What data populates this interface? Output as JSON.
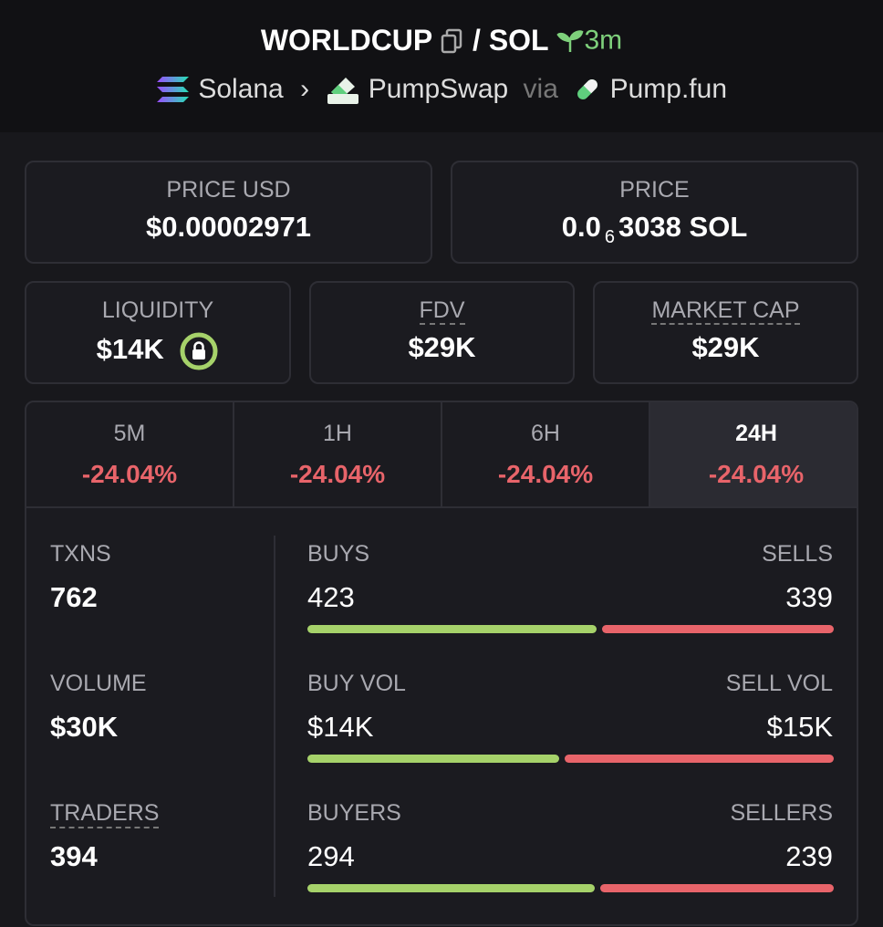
{
  "header": {
    "base": "WORLDCUP",
    "slash": "/",
    "quote": "SOL",
    "age": "3m",
    "chain": "Solana",
    "dex": "PumpSwap",
    "via": "via",
    "launchpad": "Pump.fun"
  },
  "price_usd": {
    "label": "PRICE USD",
    "value": "$0.00002971"
  },
  "price": {
    "label": "PRICE",
    "lead": "0.0",
    "zeros": "6",
    "tail": "3038 SOL"
  },
  "liquidity": {
    "label": "LIQUIDITY",
    "value": "$14K"
  },
  "fdv": {
    "label": "FDV",
    "value": "$29K"
  },
  "market_cap": {
    "label": "MARKET CAP",
    "value": "$29K"
  },
  "tabs": [
    {
      "label": "5M",
      "change": "-24.04%"
    },
    {
      "label": "1H",
      "change": "-24.04%"
    },
    {
      "label": "6H",
      "change": "-24.04%"
    },
    {
      "label": "24H",
      "change": "-24.04%"
    }
  ],
  "stats": [
    {
      "total": {
        "label": "TXNS",
        "value": 762
      },
      "left": {
        "label": "BUYS",
        "value": 423
      },
      "right": {
        "label": "SELLS",
        "value": 339
      }
    },
    {
      "total": {
        "label": "VOLUME",
        "value": "$30K"
      },
      "left": {
        "label": "BUY VOL",
        "value": {
          "value": 14000,
          "label": "$14K"
        }
      },
      "right": {
        "label": "SELL VOL",
        "value": {
          "value": 15000,
          "label": "$15K"
        }
      }
    },
    {
      "total": {
        "label": "TRADERS",
        "value": 394
      },
      "left": {
        "label": "BUYERS",
        "value": 294
      },
      "right": {
        "label": "SELLERS",
        "value": 239
      }
    }
  ]
}
